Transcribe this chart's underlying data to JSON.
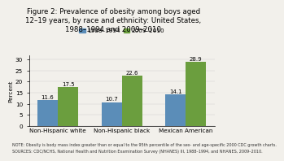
{
  "title_lines": [
    "Figure 2: Prevalence of obesity among boys aged",
    "12–19 years, by race and ethnicity: United States,",
    "1988–1994 and 2009–2010"
  ],
  "categories": [
    "Non-Hispanic white",
    "Non-Hispanic black",
    "Mexican American"
  ],
  "series": [
    {
      "label": "1988–1994",
      "values": [
        11.6,
        10.7,
        14.1
      ],
      "color": "#5b8db8"
    },
    {
      "label": "2009–2010",
      "values": [
        17.5,
        22.6,
        28.9
      ],
      "color": "#6b9e3e"
    }
  ],
  "ylabel": "Percent",
  "ylim": [
    0,
    32
  ],
  "yticks": [
    0,
    5,
    10,
    15,
    20,
    25,
    30
  ],
  "note_line1": "NOTE: Obesity is body mass index greater than or equal to the 95th percentile of the sex- and age-specific 2000 CDC growth charts.",
  "note_line2": "SOURCES: CDC/NCHS, National Health and Nutrition Examination Survey (NHANES) III, 1988–1994, and NHANES, 2009–2010.",
  "bg_color": "#f2f0eb",
  "title_fontsize": 6.2,
  "label_fontsize": 5.2,
  "tick_fontsize": 5.2,
  "note_fontsize": 3.5,
  "bar_width": 0.32,
  "value_fontsize": 5.0,
  "legend_fontsize": 5.2
}
